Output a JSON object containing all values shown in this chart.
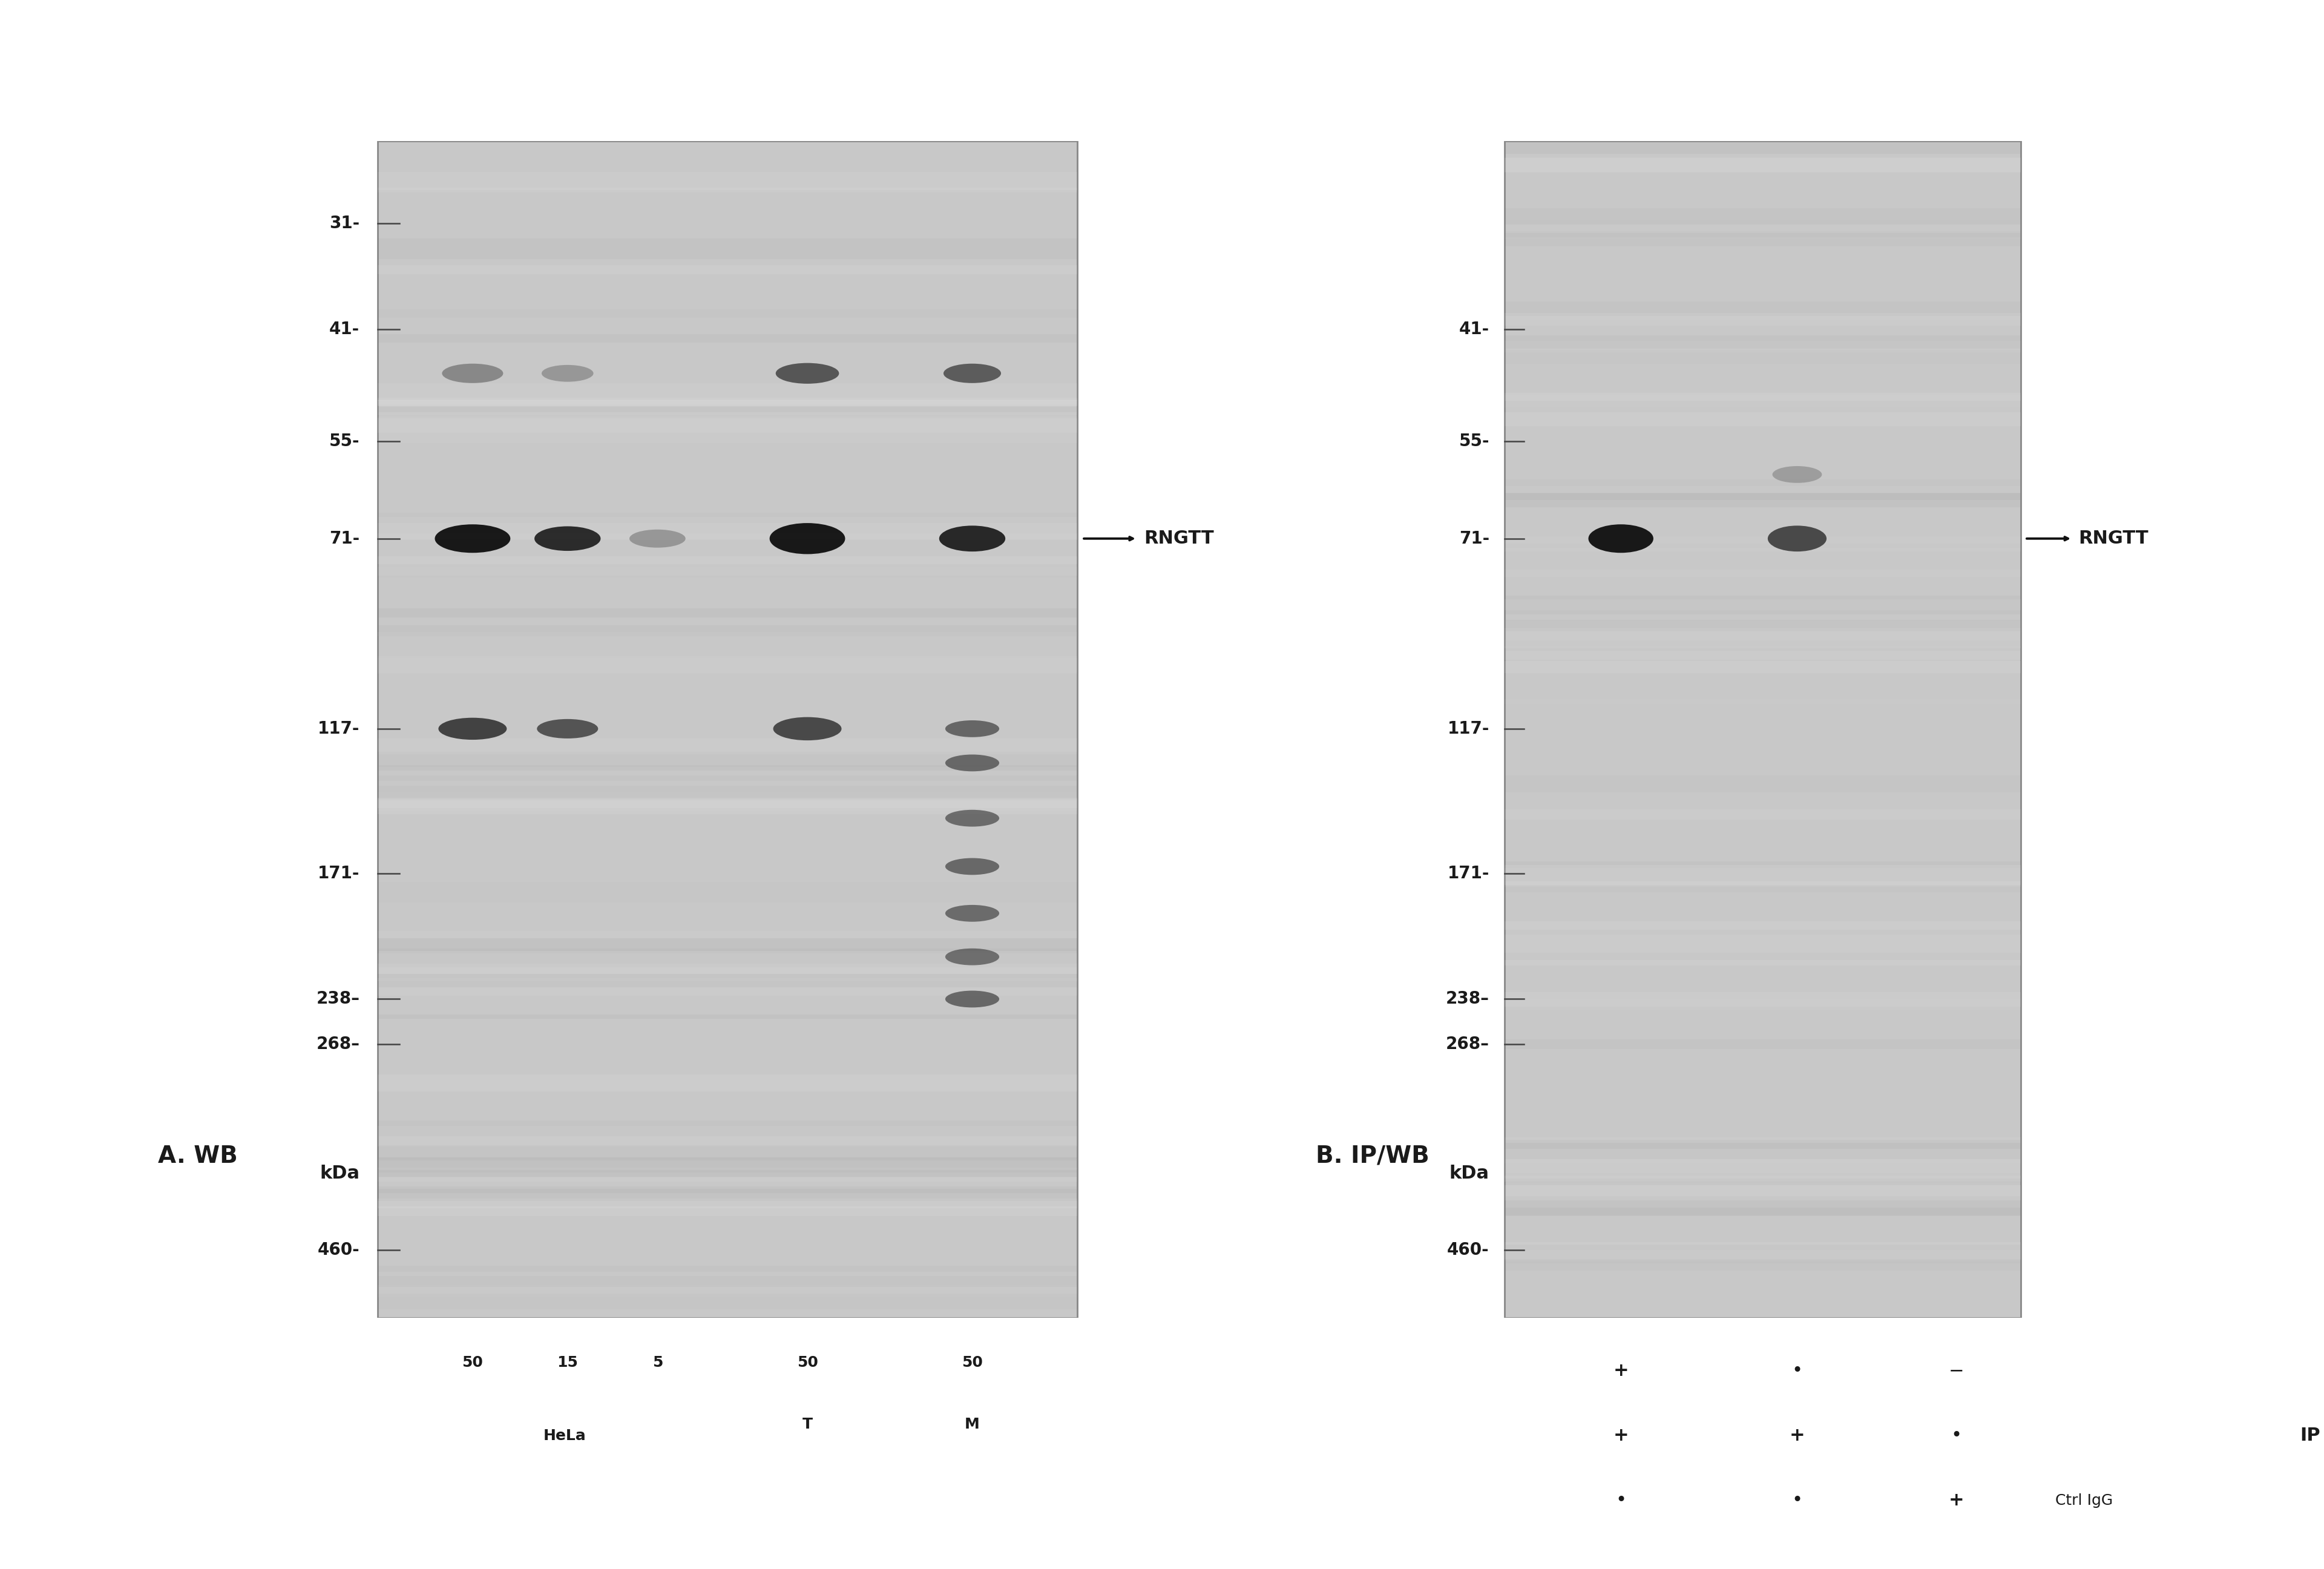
{
  "bg_color": "#ffffff",
  "gel_bg_color": "#c8c8c8",
  "panel_A_title": "A. WB",
  "panel_B_title": "B. IP/WB",
  "kda_label": "kDa",
  "mw_markers_A": [
    460,
    268,
    238,
    171,
    117,
    71,
    55,
    41,
    31
  ],
  "mw_markers_B": [
    460,
    268,
    238,
    171,
    117,
    71,
    55,
    41
  ],
  "rngtt_label": "RNGTT",
  "lane_labels_A": [
    "50",
    "15",
    "5",
    "50",
    "50"
  ],
  "hela_group": "HeLa",
  "lane_T": "T",
  "lane_M": "M",
  "ip_label": "IP",
  "ctrl_igg_label": "Ctrl IgG",
  "text_color": "#1a1a1a",
  "band_dark": "#111111",
  "band_medium": "#333333",
  "band_light": "#777777",
  "band_vlight": "#aaaaaa",
  "title_fontsize": 28,
  "label_fontsize": 22,
  "tick_fontsize": 20,
  "small_fontsize": 18,
  "mw_lo": 25,
  "mw_hi": 550
}
